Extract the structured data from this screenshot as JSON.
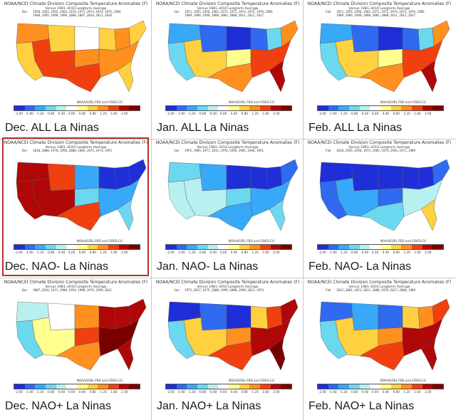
{
  "header": {
    "title": "NOAA/NCEI Climate Division Composite Temperature Anomalies (F)",
    "baseline": "Versus 1981–2010 Longterm Average"
  },
  "credit": "NOAA/ESRL PSD and CIRES-CU",
  "colorbar": {
    "ticks": [
      "-2.00",
      "-1.60",
      "-1.20",
      "-0.80",
      "-0.40",
      "0.00",
      "0.40",
      "0.80",
      "1.20",
      "1.60",
      "2.00"
    ],
    "colors": [
      "#1f2fd8",
      "#2f6af0",
      "#38a8f8",
      "#6cd8f0",
      "#b8f0f0",
      "#ffffff",
      "#ffff90",
      "#ffd040",
      "#ff9020",
      "#f04010",
      "#b00808",
      "#7a0000"
    ]
  },
  "highlighted_panel": "dec-nao-minus",
  "panels": [
    {
      "id": "dec-all",
      "caption": "Dec. ALL La Ninas",
      "years": [
        "Dec   1950,1954,1955,1964,1970,1971,1973,1974,1975,1984",
        "      1988,1995,1998,1999,2000,2007,2010,2011,2016"
      ],
      "regions": {
        "nw": "#ff9020",
        "cal": "#ffd040",
        "sw": "#f04010",
        "mtn": "#ffd040",
        "nplains": "#ffffff",
        "splains": "#ff9020",
        "texas": "#f04010",
        "mw": "#ffd040",
        "glakes": "#ff9020",
        "se": "#ff9020",
        "fl": "#ffd040",
        "ne": "#ffd040"
      }
    },
    {
      "id": "jan-all",
      "caption": "Jan. ALL La Ninas",
      "years": [
        "Jan   1951,1955,1956,1965,1971,1972,1974,1975,1976,1985",
        "      1989,1996,1999,2000,2001,2008,2011,2012,2017"
      ],
      "regions": {
        "nw": "#38a8f8",
        "cal": "#6cd8f0",
        "sw": "#ffd040",
        "mtn": "#2f6af0",
        "nplains": "#1f2fd8",
        "splains": "#ffff90",
        "texas": "#ff9020",
        "mw": "#2f6af0",
        "glakes": "#6cd8f0",
        "se": "#f04010",
        "fl": "#b00808",
        "ne": "#ff9020"
      }
    },
    {
      "id": "feb-all",
      "caption": "Feb. ALL La Ninas",
      "years": [
        "Feb   1951,1955,1956,1965,1971,1972,1974,1975,1976,1985",
        "      1989,1996,1999,2000,2001,2008,2011,2012,2017"
      ],
      "regions": {
        "nw": "#38a8f8",
        "cal": "#6cd8f0",
        "sw": "#ffd040",
        "mtn": "#2f6af0",
        "nplains": "#1f2fd8",
        "splains": "#ffff90",
        "texas": "#ff9020",
        "mw": "#2f6af0",
        "glakes": "#6cd8f0",
        "se": "#f04010",
        "fl": "#b00808",
        "ne": "#ff9020"
      }
    },
    {
      "id": "dec-nao-minus",
      "caption": "Dec. NAO- La Ninas",
      "years": [
        "Dec   2010,2000,1970,1950,2000,1964,1975,1974,1955",
        ""
      ],
      "regions": {
        "nw": "#b00808",
        "cal": "#b00808",
        "sw": "#b00808",
        "mtn": "#f04010",
        "nplains": "#38a8f8",
        "splains": "#6cd8f0",
        "texas": "#f04010",
        "mw": "#1f2fd8",
        "glakes": "#1f2fd8",
        "se": "#38a8f8",
        "fl": "#6cd8f0",
        "ne": "#1f2fd8"
      }
    },
    {
      "id": "jan-nao-minus",
      "caption": "Jan. NAO- La Ninas",
      "years": [
        "Jan   1955,1985,1971,2011,1976,1956,1965,1996,1951",
        ""
      ],
      "regions": {
        "nw": "#6cd8f0",
        "cal": "#b8f0f0",
        "sw": "#b8f0f0",
        "mtn": "#38a8f8",
        "nplains": "#1f2fd8",
        "splains": "#6cd8f0",
        "texas": "#38a8f8",
        "mw": "#1f2fd8",
        "glakes": "#1f2fd8",
        "se": "#38a8f8",
        "fl": "#6cd8f0",
        "ne": "#2f6af0"
      }
    },
    {
      "id": "feb-nao-minus",
      "caption": "Feb. NAO- La Ninas",
      "years": [
        "Feb   2010,1955,1956,1975,1985,1974,1956,1971,1989",
        ""
      ],
      "regions": {
        "nw": "#1f2fd8",
        "cal": "#2f6af0",
        "sw": "#38a8f8",
        "mtn": "#1f2fd8",
        "nplains": "#1f2fd8",
        "splains": "#2f6af0",
        "texas": "#6cd8f0",
        "mw": "#1f2fd8",
        "glakes": "#1f2fd8",
        "se": "#b8f0f0",
        "fl": "#ffd040",
        "ne": "#2f6af0"
      }
    },
    {
      "id": "dec-nao-plus",
      "caption": "Dec. NAO+ La Ninas",
      "years": [
        "Dec   2007,2016,1971,1988,1954,1998,1976,1999,2011",
        ""
      ],
      "regions": {
        "nw": "#b8f0f0",
        "cal": "#6cd8f0",
        "sw": "#ffff90",
        "mtn": "#ffffff",
        "nplains": "#ff9020",
        "splains": "#f04010",
        "texas": "#ff9020",
        "mw": "#b00808",
        "glakes": "#b00808",
        "se": "#7a0000",
        "fl": "#b00808",
        "ne": "#b00808"
      }
    },
    {
      "id": "jan-nao-plus",
      "caption": "Jan. NAO+ La Ninas",
      "years": [
        "Jan   1972,2017,1975,2000,1999,2008,1989,2012,1974",
        ""
      ],
      "regions": {
        "nw": "#1f2fd8",
        "cal": "#6cd8f0",
        "sw": "#ffd040",
        "mtn": "#2f6af0",
        "nplains": "#1f2fd8",
        "splains": "#ff9020",
        "texas": "#f04010",
        "mw": "#ffd040",
        "glakes": "#f04010",
        "se": "#b00808",
        "fl": "#7a0000",
        "ne": "#b00808"
      }
    },
    {
      "id": "feb-nao-plus",
      "caption": "Feb. NAO+ La Ninas",
      "years": [
        "Feb   2012,2001,1951,2011,2008,1976,2017,2000,1989",
        ""
      ],
      "regions": {
        "nw": "#2f6af0",
        "cal": "#6cd8f0",
        "sw": "#ffd040",
        "mtn": "#38a8f8",
        "nplains": "#2f6af0",
        "splains": "#ff9020",
        "texas": "#f04010",
        "mw": "#ffd040",
        "glakes": "#ff9020",
        "se": "#b00808",
        "fl": "#b00808",
        "ne": "#f04010"
      }
    }
  ]
}
